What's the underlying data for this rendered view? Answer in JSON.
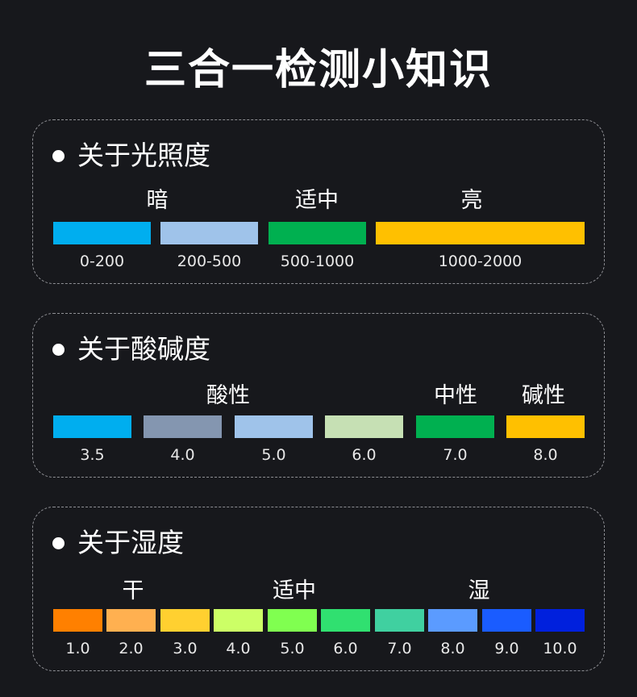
{
  "title": "三合一检测小知识",
  "light": {
    "heading": "关于光照度",
    "categories": [
      "暗",
      "适中",
      "亮"
    ],
    "ranges": [
      "0-200",
      "200-500",
      "500-1000",
      "1000-2000"
    ],
    "colors": [
      "#00aeef",
      "#9fc3ea",
      "#00b050",
      "#ffc000"
    ]
  },
  "ph": {
    "heading": "关于酸碱度",
    "categories": [
      "酸性",
      "中性",
      "碱性"
    ],
    "values": [
      "3.5",
      "4.0",
      "5.0",
      "6.0",
      "7.0",
      "8.0"
    ],
    "colors": [
      "#00aeef",
      "#8496b0",
      "#9fc3ea",
      "#c6e0b4",
      "#00b050",
      "#ffc000"
    ]
  },
  "humidity": {
    "heading": "关于湿度",
    "categories": [
      "干",
      "适中",
      "湿"
    ],
    "values": [
      "1.0",
      "2.0",
      "3.0",
      "4.0",
      "5.0",
      "6.0",
      "7.0",
      "8.0",
      "9.0",
      "10.0"
    ],
    "colors": [
      "#ff8000",
      "#ffb050",
      "#ffd030",
      "#ccff66",
      "#80ff50",
      "#30e070",
      "#40d0a0",
      "#5b9bff",
      "#1a5cff",
      "#0020dd"
    ]
  }
}
